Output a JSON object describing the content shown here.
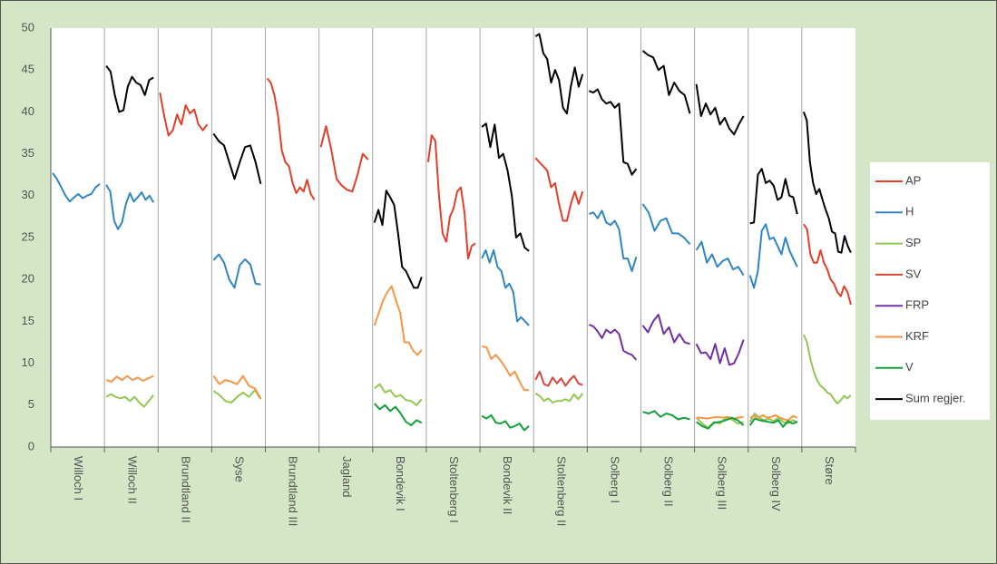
{
  "chart_data": {
    "type": "line",
    "categories": [
      "Willoch I",
      "Willoch II",
      "Brundtland II",
      "Syse",
      "Brundtland III",
      "Jagland",
      "Bondevik I",
      "Stoltenberg I",
      "Bondevik II",
      "Stoltenberg II",
      "Solberg I",
      "Solberg II",
      "Solberg III",
      "Solberg IV",
      "Støre"
    ],
    "ylim": [
      0,
      50
    ],
    "yticks": [
      0,
      5,
      10,
      15,
      20,
      25,
      30,
      35,
      40,
      45,
      50
    ],
    "grid": false,
    "series": [
      {
        "name": "AP",
        "color": "#e0402a",
        "values": [
          [],
          [],
          [
            42.3,
            39.5,
            37.2,
            37.8,
            39.7,
            38.5,
            40.8,
            39.8,
            40.3,
            38.5,
            37.8,
            38.5
          ],
          [],
          [
            44,
            43.5,
            42,
            39.5,
            35.5,
            34,
            33.5,
            31.5,
            30.3,
            31,
            30.5,
            31.9,
            30.2,
            29.5
          ],
          [
            35.8,
            38.3,
            35.5,
            32,
            31.2,
            30.7,
            30.5,
            32.5,
            35,
            34.3
          ],
          [],
          [
            34,
            37.2,
            36.5,
            30,
            25.5,
            24.5,
            27.5,
            28.5,
            30.5,
            31,
            28,
            22.5,
            24,
            24.3
          ],
          [],
          [
            34.5,
            34,
            33.5,
            33,
            31,
            31.5,
            29,
            27,
            27,
            29,
            30.5,
            29,
            30.5
          ],
          [],
          [],
          [],
          [],
          [
            26.6,
            26,
            23,
            22,
            22,
            23.5,
            22,
            21.2,
            20,
            19.5,
            18.5,
            18,
            19.2,
            18.5,
            17
          ]
        ]
      },
      {
        "name": "H",
        "color": "#2f86c3",
        "values": [
          [
            32.7,
            32,
            31,
            30,
            29.3,
            29.8,
            30.2,
            29.7,
            30,
            30.2,
            31,
            31.4
          ],
          [
            31.3,
            30.5,
            27,
            26,
            26.8,
            29,
            30.3,
            29.3,
            29.8,
            30.4,
            29.5,
            30,
            29.2
          ],
          [],
          [
            22.3,
            23,
            22,
            20,
            19,
            21.7,
            22.4,
            21.8,
            19.5,
            19.4
          ],
          [],
          [],
          [],
          [],
          [
            22.5,
            23.5,
            22,
            23.5,
            21.5,
            21,
            19,
            19.5,
            18.5,
            15,
            15.5,
            15,
            14.5
          ],
          [],
          [
            27.8,
            28,
            27.3,
            28.2,
            26.8,
            26.5,
            27,
            26,
            22.5,
            22.5,
            21,
            22.7
          ],
          [
            29,
            28,
            25.8,
            27,
            27.3,
            25.5,
            25.5,
            25,
            24.2
          ],
          [
            23.5,
            24.5,
            22,
            23,
            21.5,
            22.2,
            22.5,
            21.2,
            21.5,
            20.5
          ],
          [
            20.5,
            19,
            21,
            25.8,
            26.6,
            24.8,
            25,
            24,
            23,
            25,
            23.5,
            22.5,
            21.5
          ],
          []
        ]
      },
      {
        "name": "SP",
        "color": "#93c652",
        "values": [
          [],
          [
            6,
            6.3,
            6,
            5.8,
            6,
            5.5,
            6,
            5.3,
            4.8,
            5.5,
            6.2
          ],
          [],
          [
            6.7,
            6.2,
            5.5,
            5.3,
            6,
            6.5,
            6,
            6.8,
            5.7
          ],
          [],
          [],
          [
            7,
            7.5,
            6.5,
            6.8,
            6,
            6.2,
            5.6,
            5.5,
            5,
            5.7
          ],
          [],
          [],
          [
            6.4,
            6.1,
            5.5,
            5.8,
            5.3,
            5.5,
            5.5,
            5.7,
            5.5,
            6.3,
            5.7,
            6.4
          ],
          [],
          [],
          [
            3.5,
            2.8,
            2.3,
            3,
            2.8,
            3.5,
            3.3,
            2.8,
            3
          ],
          [
            3,
            4,
            3.5,
            3.2,
            3.4,
            3.1,
            3.5,
            3,
            2.8,
            3.2,
            3
          ],
          [
            13.4,
            12.5,
            10.5,
            9,
            8,
            7.3,
            7,
            6.5,
            6.3,
            5.7,
            5.2,
            5.6,
            6.1,
            5.8,
            6.2
          ]
        ]
      },
      {
        "name": "SV",
        "color": "#d9453c",
        "values": [
          [],
          [],
          [],
          [],
          [],
          [],
          [],
          [],
          [],
          [
            8,
            9,
            7.5,
            7.3,
            8.3,
            7.6,
            8.2,
            7.3,
            8,
            8.5,
            7.6,
            7.4
          ],
          [],
          [],
          [],
          [],
          []
        ]
      },
      {
        "name": "FRP",
        "color": "#7030a0",
        "values": [
          [],
          [],
          [],
          [],
          [],
          [],
          [],
          [],
          [],
          [],
          [
            14.6,
            14.4,
            13.8,
            13,
            14,
            13.6,
            14,
            13.5,
            11.5,
            11.2,
            11,
            10.4
          ],
          [
            14.5,
            13.7,
            15,
            15.8,
            13.5,
            14.3,
            12.5,
            13.5,
            12.5,
            12.3
          ],
          [
            12.3,
            11.2,
            11.3,
            10.5,
            12.3,
            10,
            11.8,
            9.8,
            10,
            11.2,
            12.8
          ],
          [],
          []
        ]
      },
      {
        "name": "KRF",
        "color": "#f79646",
        "values": [
          [],
          [
            8,
            7.8,
            8.4,
            8,
            8.5,
            8,
            8.3,
            7.9,
            8.2,
            8.5
          ],
          [],
          [
            8.5,
            7.5,
            8,
            7.8,
            7.5,
            8.5,
            7.3,
            7,
            5.8
          ],
          [],
          [],
          [
            14.5,
            16,
            17.5,
            18.5,
            19.2,
            17.5,
            16,
            12.5,
            12.5,
            11.5,
            11,
            11.6
          ],
          [],
          [
            12,
            11.9,
            10.5,
            11,
            10.3,
            9.5,
            8.5,
            9,
            7.8,
            6.8,
            6.8
          ],
          [],
          [],
          [],
          [
            3.5,
            3.5,
            3.4,
            3.5,
            3.6,
            3.5,
            3.6,
            3.4,
            3.5,
            3.6
          ],
          [
            3.5,
            3.7,
            3.5,
            3.8,
            3.5,
            3.6,
            3.8,
            3.5,
            3.3,
            3.2,
            3.7,
            3.5
          ],
          []
        ]
      },
      {
        "name": "V",
        "color": "#13a03c",
        "values": [
          [],
          [],
          [],
          [],
          [],
          [],
          [
            5.2,
            4.5,
            5,
            4.3,
            4.8,
            4,
            3,
            2.6,
            3.2,
            2.9
          ],
          [],
          [
            3.7,
            3.4,
            3.8,
            2.9,
            2.8,
            3.1,
            2.3,
            2.5,
            2.8,
            2,
            2.5
          ],
          [],
          [],
          [
            4.2,
            4,
            4.3,
            3.6,
            4,
            3.8,
            3.3,
            3.5,
            3.3
          ],
          [
            3,
            2.5,
            2.2,
            2.9,
            3,
            3.2,
            3.5,
            3.2,
            2.6
          ],
          [
            2.6,
            3.4,
            3.2,
            3.1,
            3,
            2.9,
            3.2,
            2.4,
            3.1,
            2.8,
            3
          ],
          []
        ]
      },
      {
        "name": "Sum regjer.",
        "color": "#000000",
        "values": [
          [],
          [
            45.5,
            44.8,
            42,
            40,
            40.2,
            43,
            44.2,
            43.5,
            43.2,
            42,
            43.8,
            44.1
          ],
          [],
          [
            37.4,
            36.5,
            36,
            34,
            32,
            34,
            35.8,
            36,
            34,
            31.4
          ],
          [],
          [],
          [
            26.8,
            28.3,
            26.5,
            30.6,
            29.8,
            28.9,
            25.5,
            21.5,
            21,
            20,
            19,
            19,
            20.3
          ],
          [],
          [
            38.2,
            38.6,
            35.8,
            38.5,
            34.5,
            35,
            33,
            30,
            25,
            25.5,
            23.8,
            23.4
          ],
          [
            49,
            49.3,
            47,
            46.3,
            43.5,
            45,
            43.8,
            40.5,
            39.8,
            43,
            45.3,
            43,
            44.5
          ],
          [
            42.5,
            42.3,
            42.7,
            41.5,
            41,
            41.2,
            40.5,
            41,
            34,
            33.8,
            32.5,
            33.2
          ],
          [
            47.3,
            46.8,
            46.5,
            45,
            45.5,
            42,
            43.5,
            42.5,
            42,
            39.8
          ],
          [
            43.3,
            39.5,
            41,
            39.7,
            40.5,
            38.5,
            39.3,
            38,
            37.3,
            38.5,
            39.5
          ],
          [
            26.7,
            26.8,
            32.5,
            33.2,
            31.5,
            31.8,
            31.2,
            29.5,
            29.8,
            32,
            30,
            29.8,
            27.8
          ],
          [
            40,
            39,
            34,
            31.5,
            30.2,
            30.8,
            29.5,
            28.3,
            27.3,
            25.7,
            25.5,
            23.3,
            23.2,
            25.2,
            24,
            23.2
          ]
        ]
      }
    ]
  }
}
